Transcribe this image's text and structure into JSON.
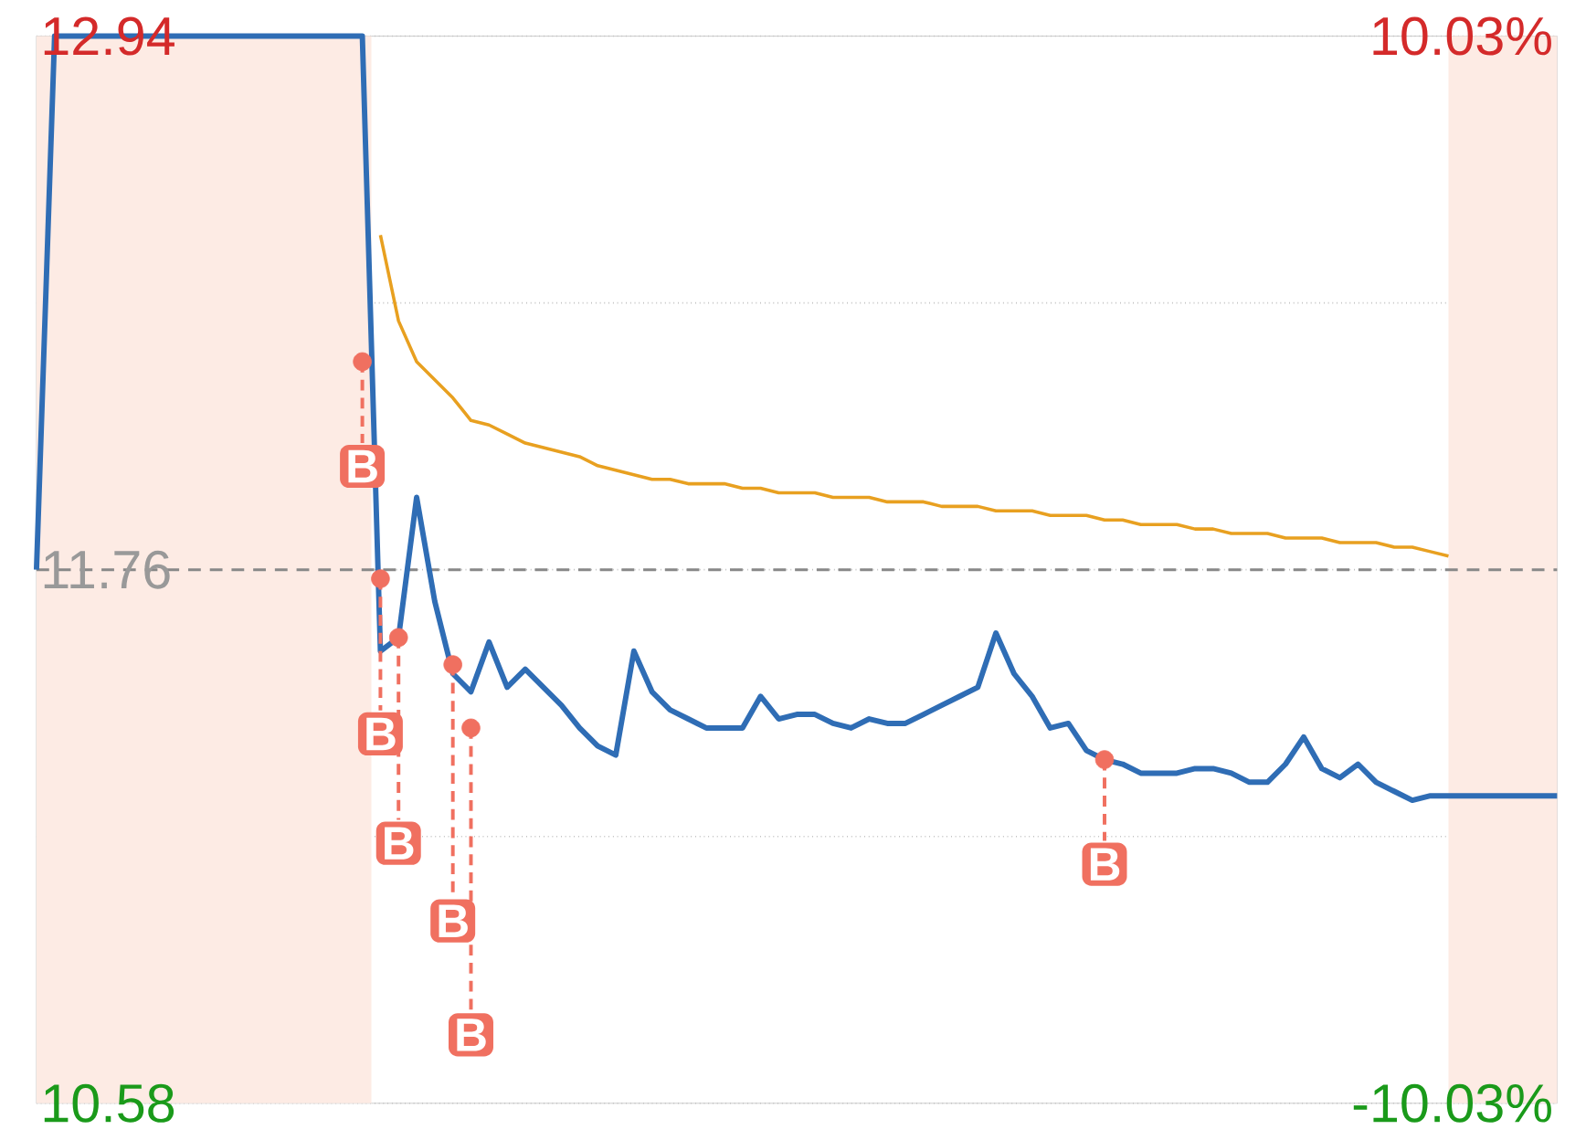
{
  "chart_data": {
    "type": "line",
    "categories": [
      null,
      null,
      null,
      null,
      null,
      null,
      null,
      null,
      null,
      null,
      null,
      null,
      null,
      null,
      null,
      null,
      null,
      null,
      null,
      null,
      null,
      null,
      null,
      null,
      null,
      null,
      null,
      null,
      null,
      null,
      null,
      null,
      null,
      null,
      null,
      null,
      null,
      null,
      null,
      null,
      null,
      null,
      null,
      null,
      null,
      null,
      null,
      null,
      null,
      null,
      null,
      null,
      null,
      null,
      null,
      null,
      null,
      null,
      null,
      null,
      null,
      null,
      null,
      null,
      null,
      null,
      null,
      null,
      null,
      null,
      null,
      null,
      null,
      null,
      null,
      null,
      null,
      null,
      null,
      null,
      null,
      null,
      null,
      null,
      null
    ],
    "ylim": [
      10.58,
      12.94
    ],
    "yticks": [
      12.94,
      {
        "value": 12.35,
        "label": null
      },
      11.76,
      {
        "value": 11.17,
        "label": null
      },
      10.58
    ],
    "y2lim": [
      -10.03,
      10.03
    ],
    "y2ticks": [
      {
        "value": 10.03,
        "label": "10.03%"
      },
      {
        "value": -10.03,
        "label": "-10.03%"
      }
    ],
    "grid": "y",
    "marker": "none",
    "ref_lines": [
      {
        "axis": "y",
        "value": 11.76,
        "color": "#888888",
        "line_style": "dashed"
      }
    ],
    "series": [
      {
        "color": "#2f6db5",
        "values": [
          11.76,
          12.94,
          12.94,
          12.94,
          12.94,
          12.94,
          12.94,
          12.94,
          12.94,
          12.94,
          12.94,
          12.94,
          12.94,
          12.94,
          12.94,
          12.94,
          12.94,
          12.94,
          12.94,
          11.58,
          11.61,
          11.92,
          11.69,
          11.53,
          11.49,
          11.6,
          11.5,
          11.54,
          11.5,
          11.46,
          11.41,
          11.37,
          11.35,
          11.58,
          11.49,
          11.45,
          11.43,
          11.41,
          11.41,
          11.41,
          11.48,
          11.43,
          11.44,
          11.44,
          11.42,
          11.41,
          11.43,
          11.42,
          11.42,
          11.44,
          11.46,
          11.48,
          11.5,
          11.62,
          11.53,
          11.48,
          11.41,
          11.42,
          11.36,
          11.34,
          11.33,
          11.31,
          11.31,
          11.31,
          11.32,
          11.32,
          11.31,
          11.29,
          11.29,
          11.33,
          11.39,
          11.32,
          11.3,
          11.33,
          11.29,
          11.27,
          11.25,
          11.26,
          11.26,
          11.26,
          11.26,
          11.26,
          11.26,
          11.26,
          11.26
        ]
      },
      {
        "color": "#e8a020",
        "values": [
          null,
          null,
          null,
          null,
          null,
          null,
          null,
          null,
          null,
          null,
          null,
          null,
          null,
          null,
          null,
          null,
          null,
          null,
          null,
          12.5,
          12.31,
          12.22,
          12.18,
          12.14,
          12.09,
          12.08,
          12.06,
          12.04,
          12.03,
          12.02,
          12.01,
          11.99,
          11.98,
          11.97,
          11.96,
          11.96,
          11.95,
          11.95,
          11.95,
          11.94,
          11.94,
          11.93,
          11.93,
          11.93,
          11.92,
          11.92,
          11.92,
          11.91,
          11.91,
          11.91,
          11.9,
          11.9,
          11.9,
          11.89,
          11.89,
          11.89,
          11.88,
          11.88,
          11.88,
          11.87,
          11.87,
          11.86,
          11.86,
          11.86,
          11.85,
          11.85,
          11.84,
          11.84,
          11.84,
          11.83,
          11.83,
          11.83,
          11.82,
          11.82,
          11.82,
          11.81,
          11.81,
          11.8,
          11.79,
          null,
          null,
          null,
          null,
          null,
          null
        ]
      },
      {
        "type": "scatter",
        "color": "#f07060",
        "marker": "circle",
        "values": [
          null,
          null,
          null,
          null,
          null,
          null,
          null,
          null,
          null,
          null,
          null,
          null,
          null,
          null,
          null,
          null,
          null,
          null,
          12.22,
          11.74,
          11.61,
          null,
          null,
          11.55,
          11.41,
          null,
          null,
          null,
          null,
          null,
          null,
          null,
          null,
          null,
          null,
          null,
          null,
          null,
          null,
          null,
          null,
          null,
          null,
          null,
          null,
          null,
          null,
          null,
          null,
          null,
          null,
          null,
          null,
          null,
          null,
          null,
          null,
          null,
          null,
          11.34,
          null,
          null,
          null,
          null,
          null,
          null,
          null,
          null,
          null,
          null,
          null,
          null,
          null,
          null,
          null,
          null,
          null,
          null,
          null,
          null,
          null,
          null,
          null,
          null,
          null
        ],
        "value_labels": [
          null,
          null,
          null,
          null,
          null,
          null,
          null,
          null,
          null,
          null,
          null,
          null,
          null,
          null,
          null,
          null,
          null,
          null,
          "B",
          "B",
          "B",
          null,
          null,
          "B",
          "B",
          null,
          null,
          null,
          null,
          null,
          null,
          null,
          null,
          null,
          null,
          null,
          null,
          null,
          null,
          null,
          null,
          null,
          null,
          null,
          null,
          null,
          null,
          null,
          null,
          null,
          null,
          null,
          null,
          null,
          null,
          null,
          null,
          null,
          null,
          "B",
          null,
          null,
          null,
          null,
          null,
          null,
          null,
          null,
          null,
          null,
          null,
          null,
          null,
          null,
          null,
          null,
          null,
          null,
          null,
          null,
          null,
          null,
          null,
          null,
          null
        ]
      }
    ]
  }
}
